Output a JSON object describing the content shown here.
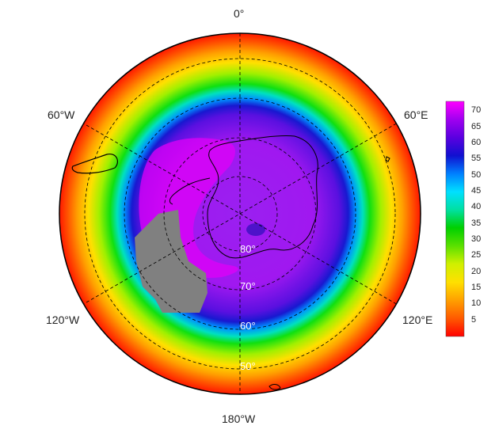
{
  "map": {
    "projection": "south-polar-stereographic",
    "longitude_labels": {
      "top": "0°",
      "upper_left": "60°W",
      "upper_right": "60°E",
      "lower_left": "120°W",
      "lower_right": "120°E",
      "bottom": "180°W"
    },
    "latitude_labels": [
      "80°",
      "70°",
      "60°",
      "50°"
    ],
    "no_data_color": "#808080",
    "coastline_color": "#000000"
  },
  "colorbar": {
    "ticks": [
      "70",
      "65",
      "60",
      "55",
      "50",
      "45",
      "40",
      "35",
      "30",
      "25",
      "20",
      "15",
      "10",
      "5"
    ],
    "range": [
      0,
      73
    ],
    "colors": [
      "#ff0000",
      "#ff5a00",
      "#ffa000",
      "#ffe000",
      "#d0f000",
      "#5ae000",
      "#00d000",
      "#00e0a0",
      "#00e0ff",
      "#0080ff",
      "#1010d0",
      "#5a00e0",
      "#a000f0",
      "#ff00ff"
    ]
  }
}
